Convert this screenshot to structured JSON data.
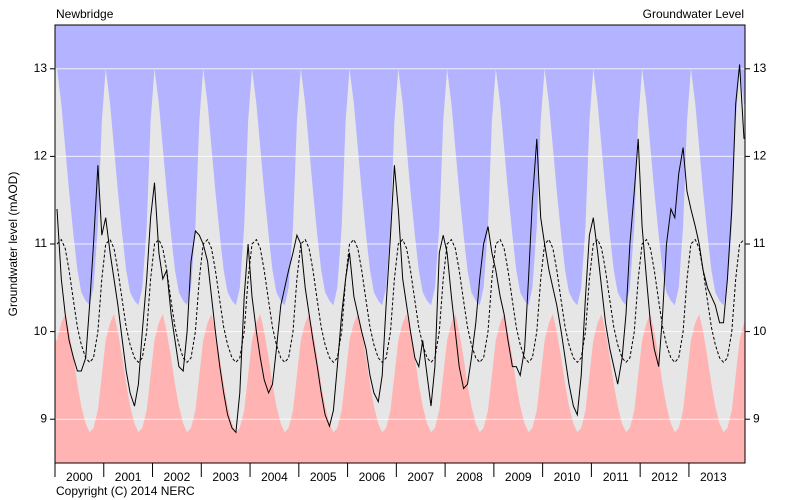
{
  "chart_data": {
    "type": "area-band-line",
    "title": "Newbridge",
    "subtitle": "Groundwater Level",
    "y_label": "Groundwater level (mAOD)",
    "footer": "Copyright (C) 2014 NERC",
    "plot_background": "#e6e6e6",
    "grid": true,
    "xlim": [
      2000,
      2014.15
    ],
    "xticks": [
      2000,
      2001,
      2002,
      2003,
      2004,
      2005,
      2006,
      2007,
      2008,
      2009,
      2010,
      2011,
      2012,
      2013
    ],
    "ylim": [
      8.5,
      13.5
    ],
    "yticks": [
      9,
      10,
      11,
      12,
      13
    ],
    "x": [
      2000.04,
      2000.13,
      2000.21,
      2000.29,
      2000.38,
      2000.46,
      2000.54,
      2000.63,
      2000.71,
      2000.79,
      2000.88,
      2000.96,
      2001.04,
      2001.13,
      2001.21,
      2001.29,
      2001.38,
      2001.46,
      2001.54,
      2001.63,
      2001.71,
      2001.79,
      2001.88,
      2001.96,
      2002.04,
      2002.13,
      2002.21,
      2002.29,
      2002.38,
      2002.46,
      2002.54,
      2002.63,
      2002.71,
      2002.79,
      2002.88,
      2002.96,
      2003.04,
      2003.13,
      2003.21,
      2003.29,
      2003.38,
      2003.46,
      2003.54,
      2003.63,
      2003.71,
      2003.79,
      2003.88,
      2003.96,
      2004.04,
      2004.13,
      2004.21,
      2004.29,
      2004.38,
      2004.46,
      2004.54,
      2004.63,
      2004.71,
      2004.79,
      2004.88,
      2004.96,
      2005.04,
      2005.13,
      2005.21,
      2005.29,
      2005.38,
      2005.46,
      2005.54,
      2005.63,
      2005.71,
      2005.79,
      2005.88,
      2005.96,
      2006.04,
      2006.13,
      2006.21,
      2006.29,
      2006.38,
      2006.46,
      2006.54,
      2006.63,
      2006.71,
      2006.79,
      2006.88,
      2006.96,
      2007.04,
      2007.13,
      2007.21,
      2007.29,
      2007.38,
      2007.46,
      2007.54,
      2007.63,
      2007.71,
      2007.79,
      2007.88,
      2007.96,
      2008.04,
      2008.13,
      2008.21,
      2008.29,
      2008.38,
      2008.46,
      2008.54,
      2008.63,
      2008.71,
      2008.79,
      2008.88,
      2008.96,
      2009.04,
      2009.13,
      2009.21,
      2009.29,
      2009.38,
      2009.46,
      2009.54,
      2009.63,
      2009.71,
      2009.79,
      2009.88,
      2009.96,
      2010.04,
      2010.13,
      2010.21,
      2010.29,
      2010.38,
      2010.46,
      2010.54,
      2010.63,
      2010.71,
      2010.79,
      2010.88,
      2010.96,
      2011.04,
      2011.13,
      2011.21,
      2011.29,
      2011.38,
      2011.46,
      2011.54,
      2011.63,
      2011.71,
      2011.79,
      2011.88,
      2011.96,
      2012.04,
      2012.13,
      2012.21,
      2012.29,
      2012.38,
      2012.46,
      2012.54,
      2012.63,
      2012.71,
      2012.79,
      2012.88,
      2012.96,
      2013.04,
      2013.13,
      2013.21,
      2013.29,
      2013.38,
      2013.46,
      2013.54,
      2013.63,
      2013.71,
      2013.79,
      2013.88,
      2013.96,
      2014.04,
      2014.13
    ],
    "series": [
      {
        "color": "#b3b3ff",
        "fill": "above",
        "values": [
          13.0,
          12.6,
          12.1,
          11.6,
          11.1,
          10.7,
          10.45,
          10.35,
          10.3,
          10.5,
          11.2,
          12.4,
          13.0,
          12.6,
          12.1,
          11.6,
          11.1,
          10.7,
          10.45,
          10.35,
          10.3,
          10.5,
          11.2,
          12.4,
          13.0,
          12.6,
          12.1,
          11.6,
          11.1,
          10.7,
          10.45,
          10.35,
          10.3,
          10.5,
          11.2,
          12.4,
          13.0,
          12.6,
          12.1,
          11.6,
          11.1,
          10.7,
          10.45,
          10.35,
          10.3,
          10.5,
          11.2,
          12.4,
          13.0,
          12.6,
          12.1,
          11.6,
          11.1,
          10.7,
          10.45,
          10.35,
          10.3,
          10.5,
          11.2,
          12.4,
          13.0,
          12.6,
          12.1,
          11.6,
          11.1,
          10.7,
          10.45,
          10.35,
          10.3,
          10.5,
          11.2,
          12.4,
          13.0,
          12.6,
          12.1,
          11.6,
          11.1,
          10.7,
          10.45,
          10.35,
          10.3,
          10.5,
          11.2,
          12.4,
          13.0,
          12.6,
          12.1,
          11.6,
          11.1,
          10.7,
          10.45,
          10.35,
          10.3,
          10.5,
          11.2,
          12.4,
          13.0,
          12.6,
          12.1,
          11.6,
          11.1,
          10.7,
          10.45,
          10.35,
          10.3,
          10.5,
          11.2,
          12.4,
          13.0,
          12.6,
          12.1,
          11.6,
          11.1,
          10.7,
          10.45,
          10.35,
          10.3,
          10.5,
          11.2,
          12.4,
          13.0,
          12.6,
          12.1,
          11.6,
          11.1,
          10.7,
          10.45,
          10.35,
          10.3,
          10.5,
          11.2,
          12.4,
          13.0,
          12.6,
          12.1,
          11.6,
          11.1,
          10.7,
          10.45,
          10.35,
          10.3,
          10.5,
          11.2,
          12.4,
          13.0,
          12.6,
          12.1,
          11.6,
          11.1,
          10.7,
          10.45,
          10.35,
          10.3,
          10.5,
          11.2,
          12.4,
          13.0,
          12.6,
          12.1,
          11.6,
          11.1,
          10.7,
          10.45,
          10.35,
          10.3,
          10.5,
          11.2,
          12.4,
          13.0,
          12.6
        ]
      },
      {
        "color": "#ffb3b3",
        "fill": "below",
        "values": [
          9.9,
          10.1,
          10.2,
          10.0,
          9.7,
          9.4,
          9.15,
          8.95,
          8.85,
          8.9,
          9.1,
          9.5,
          9.9,
          10.1,
          10.2,
          10.0,
          9.7,
          9.4,
          9.15,
          8.95,
          8.85,
          8.9,
          9.1,
          9.5,
          9.9,
          10.1,
          10.2,
          10.0,
          9.7,
          9.4,
          9.15,
          8.95,
          8.85,
          8.9,
          9.1,
          9.5,
          9.9,
          10.1,
          10.2,
          10.0,
          9.7,
          9.4,
          9.15,
          8.95,
          8.85,
          8.9,
          9.1,
          9.5,
          9.9,
          10.1,
          10.2,
          10.0,
          9.7,
          9.4,
          9.15,
          8.95,
          8.85,
          8.9,
          9.1,
          9.5,
          9.9,
          10.1,
          10.2,
          10.0,
          9.7,
          9.4,
          9.15,
          8.95,
          8.85,
          8.9,
          9.1,
          9.5,
          9.9,
          10.1,
          10.2,
          10.0,
          9.7,
          9.4,
          9.15,
          8.95,
          8.85,
          8.9,
          9.1,
          9.5,
          9.9,
          10.1,
          10.2,
          10.0,
          9.7,
          9.4,
          9.15,
          8.95,
          8.85,
          8.9,
          9.1,
          9.5,
          9.9,
          10.1,
          10.2,
          10.0,
          9.7,
          9.4,
          9.15,
          8.95,
          8.85,
          8.9,
          9.1,
          9.5,
          9.9,
          10.1,
          10.2,
          10.0,
          9.7,
          9.4,
          9.15,
          8.95,
          8.85,
          8.9,
          9.1,
          9.5,
          9.9,
          10.1,
          10.2,
          10.0,
          9.7,
          9.4,
          9.15,
          8.95,
          8.85,
          8.9,
          9.1,
          9.5,
          9.9,
          10.1,
          10.2,
          10.0,
          9.7,
          9.4,
          9.15,
          8.95,
          8.85,
          8.9,
          9.1,
          9.5,
          9.9,
          10.1,
          10.2,
          10.0,
          9.7,
          9.4,
          9.15,
          8.95,
          8.85,
          8.9,
          9.1,
          9.5,
          9.9,
          10.1,
          10.2,
          10.0,
          9.7,
          9.4,
          9.15,
          8.95,
          8.85,
          8.9,
          9.1,
          9.5,
          9.9,
          10.1
        ]
      },
      {
        "color": "#000000",
        "line_style": "dashed",
        "values": [
          11.0,
          11.05,
          10.95,
          10.7,
          10.35,
          10.05,
          9.85,
          9.7,
          9.65,
          9.7,
          10.0,
          10.6,
          11.0,
          11.05,
          10.95,
          10.7,
          10.35,
          10.05,
          9.85,
          9.7,
          9.65,
          9.7,
          10.0,
          10.6,
          11.0,
          11.05,
          10.95,
          10.7,
          10.35,
          10.05,
          9.85,
          9.7,
          9.65,
          9.7,
          10.0,
          10.6,
          11.0,
          11.05,
          10.95,
          10.7,
          10.35,
          10.05,
          9.85,
          9.7,
          9.65,
          9.7,
          10.0,
          10.6,
          11.0,
          11.05,
          10.95,
          10.7,
          10.35,
          10.05,
          9.85,
          9.7,
          9.65,
          9.7,
          10.0,
          10.6,
          11.0,
          11.05,
          10.95,
          10.7,
          10.35,
          10.05,
          9.85,
          9.7,
          9.65,
          9.7,
          10.0,
          10.6,
          11.0,
          11.05,
          10.95,
          10.7,
          10.35,
          10.05,
          9.85,
          9.7,
          9.65,
          9.7,
          10.0,
          10.6,
          11.0,
          11.05,
          10.95,
          10.7,
          10.35,
          10.05,
          9.85,
          9.7,
          9.65,
          9.7,
          10.0,
          10.6,
          11.0,
          11.05,
          10.95,
          10.7,
          10.35,
          10.05,
          9.85,
          9.7,
          9.65,
          9.7,
          10.0,
          10.6,
          11.0,
          11.05,
          10.95,
          10.7,
          10.35,
          10.05,
          9.85,
          9.7,
          9.65,
          9.7,
          10.0,
          10.6,
          11.0,
          11.05,
          10.95,
          10.7,
          10.35,
          10.05,
          9.85,
          9.7,
          9.65,
          9.7,
          10.0,
          10.6,
          11.0,
          11.05,
          10.95,
          10.7,
          10.35,
          10.05,
          9.85,
          9.7,
          9.65,
          9.7,
          10.0,
          10.6,
          11.0,
          11.05,
          10.95,
          10.7,
          10.35,
          10.05,
          9.85,
          9.7,
          9.65,
          9.7,
          10.0,
          10.6,
          11.0,
          11.05,
          10.95,
          10.7,
          10.35,
          10.05,
          9.85,
          9.7,
          9.65,
          9.7,
          10.0,
          10.6,
          11.0,
          11.05
        ]
      },
      {
        "color": "#000000",
        "line_style": "solid",
        "values": [
          11.4,
          10.6,
          10.2,
          9.9,
          9.7,
          9.55,
          9.55,
          9.7,
          10.3,
          11.0,
          11.9,
          11.1,
          11.3,
          10.9,
          10.6,
          10.3,
          9.9,
          9.55,
          9.3,
          9.15,
          9.4,
          10.0,
          10.6,
          11.3,
          11.7,
          10.9,
          10.6,
          10.7,
          10.2,
          9.9,
          9.6,
          9.55,
          10.0,
          10.8,
          11.15,
          11.1,
          11.0,
          10.8,
          10.4,
          10.0,
          9.6,
          9.3,
          9.05,
          8.9,
          8.85,
          9.3,
          10.4,
          11.0,
          10.4,
          10.0,
          9.7,
          9.45,
          9.3,
          9.4,
          9.8,
          10.3,
          10.5,
          10.7,
          10.9,
          11.1,
          11.0,
          10.5,
          10.2,
          9.9,
          9.6,
          9.3,
          9.05,
          8.92,
          9.1,
          9.6,
          10.2,
          10.6,
          10.9,
          10.4,
          10.2,
          10.0,
          9.8,
          9.5,
          9.3,
          9.2,
          9.5,
          10.3,
          11.1,
          11.9,
          11.4,
          10.6,
          10.3,
          10.0,
          9.7,
          9.6,
          9.9,
          9.5,
          9.15,
          9.6,
          10.9,
          11.1,
          10.9,
          10.4,
          10.0,
          9.6,
          9.35,
          9.4,
          9.7,
          10.1,
          10.6,
          11.0,
          11.2,
          10.9,
          10.7,
          10.4,
          10.2,
          9.9,
          9.6,
          9.6,
          9.5,
          9.8,
          10.6,
          11.5,
          12.2,
          11.3,
          11.0,
          10.7,
          10.5,
          10.3,
          10.0,
          9.7,
          9.4,
          9.15,
          9.05,
          9.5,
          10.4,
          11.1,
          11.3,
          10.9,
          10.5,
          10.1,
          9.8,
          9.6,
          9.4,
          9.7,
          10.2,
          11.0,
          11.6,
          12.2,
          11.2,
          10.6,
          10.1,
          9.8,
          9.6,
          10.2,
          11.0,
          11.4,
          11.3,
          11.8,
          12.1,
          11.6,
          11.4,
          11.2,
          11.0,
          10.7,
          10.5,
          10.4,
          10.3,
          10.1,
          10.1,
          10.6,
          11.4,
          12.6,
          13.05,
          12.2
        ]
      }
    ]
  }
}
